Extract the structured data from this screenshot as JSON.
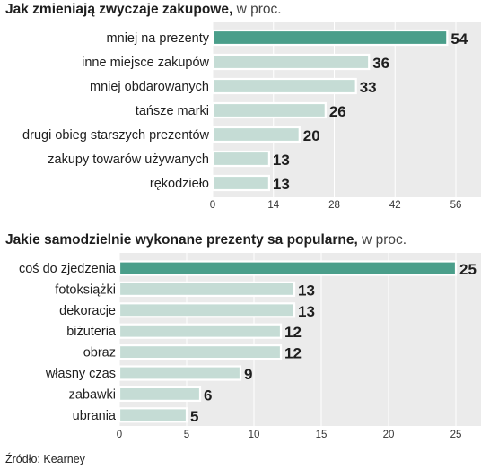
{
  "charts": [
    {
      "title": "Jak zmieniają zwyczaje zakupowe,",
      "unit": "w proc.",
      "chart_data": {
        "type": "bar",
        "orientation": "horizontal",
        "categories": [
          "mniej na prezenty",
          "inne miejsce zakupów",
          "mniej obdarowanych",
          "tańsze marki",
          "drugi obieg starszych prezentów",
          "zakupy towarów używanych",
          "rękodzieło"
        ],
        "values": [
          54,
          36,
          33,
          26,
          20,
          13,
          13
        ],
        "value_labels": [
          "54",
          "36",
          "33",
          "26",
          "20",
          "13",
          "13"
        ],
        "xlim": [
          0,
          56
        ],
        "ticks": [
          "0",
          "14",
          "28",
          "42",
          "56"
        ],
        "highlight_color": "#4a9e8a",
        "bar_color": "#c5dcd5",
        "panel_color": "#ebebeb"
      }
    },
    {
      "title": "Jakie samodzielnie wykonane prezenty sa popularne,",
      "unit": "w proc.",
      "chart_data": {
        "type": "bar",
        "orientation": "horizontal",
        "categories": [
          "coś do zjedzenia",
          "fotoksiążki",
          "dekoracje",
          "biżuteria",
          "obraz",
          "własny czas",
          "zabawki",
          "ubrania"
        ],
        "values": [
          25,
          13,
          13,
          12,
          12,
          9,
          6,
          5
        ],
        "value_labels": [
          "25",
          "13",
          "13",
          "12",
          "12",
          "9",
          "6",
          "5"
        ],
        "xlim": [
          0,
          25
        ],
        "ticks": [
          "0",
          "5",
          "10",
          "15",
          "20",
          "25"
        ],
        "highlight_color": "#4a9e8a",
        "bar_color": "#c5dcd5",
        "panel_color": "#ebebeb"
      }
    }
  ],
  "source": "Źródło: Kearney"
}
